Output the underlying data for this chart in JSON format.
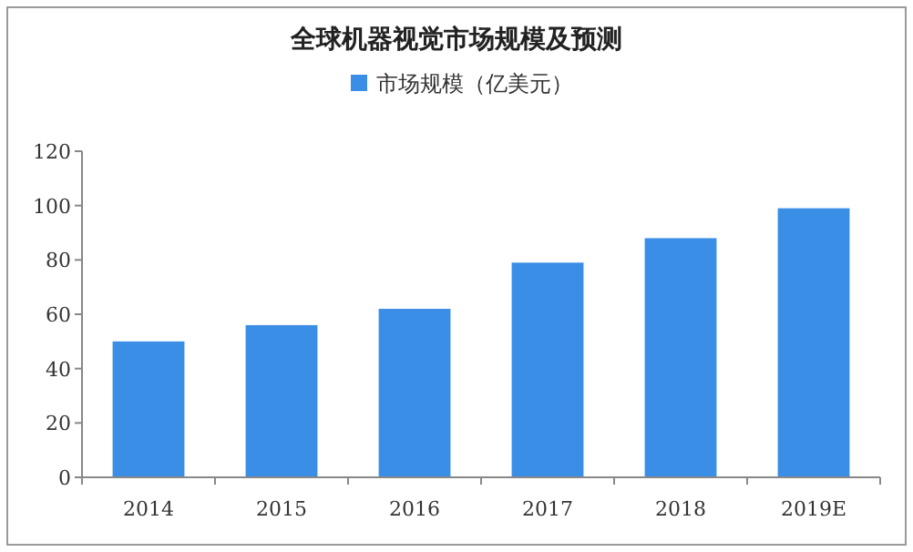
{
  "chart_data": {
    "type": "bar",
    "title": "全球机器视觉市场规模及预测",
    "categories": [
      "2014",
      "2015",
      "2016",
      "2017",
      "2018",
      "2019E"
    ],
    "series": [
      {
        "name": "市场规模（亿美元）",
        "color": "#3a8ee6",
        "values": [
          50,
          56,
          62,
          79,
          88,
          99
        ]
      }
    ],
    "ylim": [
      0,
      120
    ],
    "yticks": [
      0,
      20,
      40,
      60,
      80,
      100,
      120
    ],
    "grid": false,
    "legend": "top"
  }
}
